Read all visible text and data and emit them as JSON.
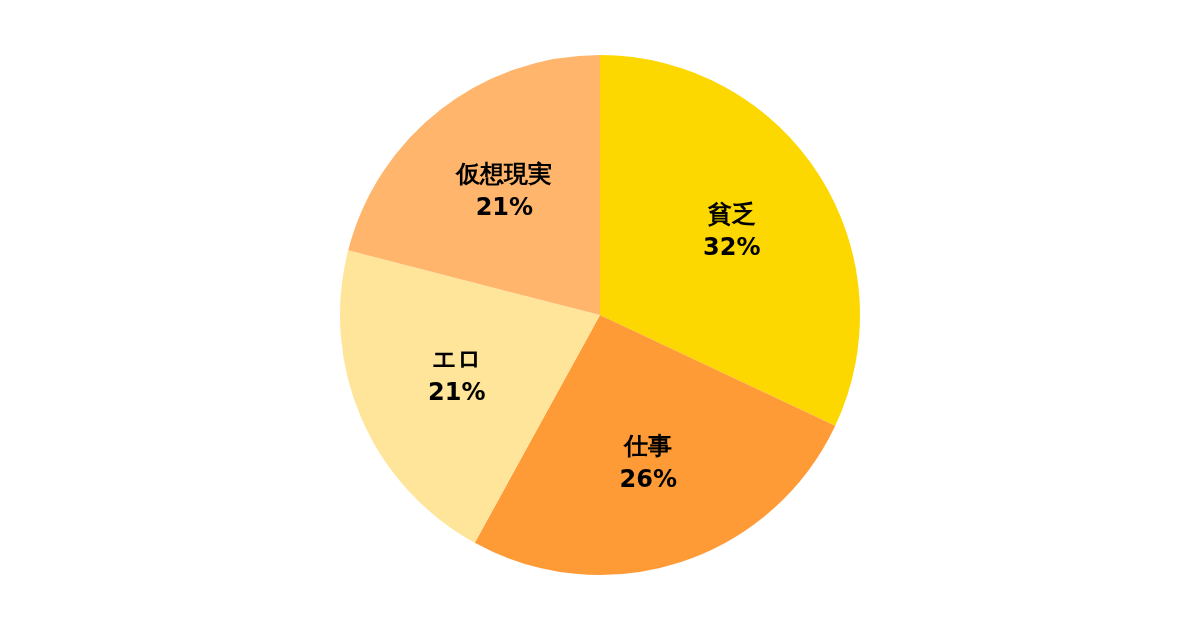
{
  "chart_data": {
    "type": "pie",
    "categories": [
      "貧乏",
      "仕事",
      "エロ",
      "仮想現実"
    ],
    "values": [
      32,
      26,
      21,
      21
    ],
    "colors": [
      "#fdd700",
      "#ff9b37",
      "#ffe599",
      "#ffb66c"
    ],
    "value_labels": [
      "32%",
      "26%",
      "21%",
      "21%"
    ],
    "legend": false
  }
}
